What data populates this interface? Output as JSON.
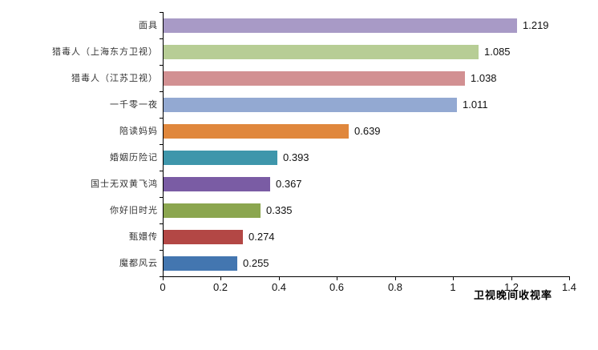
{
  "chart_data": {
    "type": "bar",
    "orientation": "horizontal",
    "title": "",
    "xlabel": "卫视晚间收视率",
    "ylabel": "",
    "xlim": [
      0,
      1.4
    ],
    "x_ticks": [
      "0",
      "0.2",
      "0.4",
      "0.6",
      "0.8",
      "1",
      "1.2",
      "1.4"
    ],
    "grid": false,
    "legend": "none",
    "categories": [
      "面具",
      "猎毒人（上海东方卫视）",
      "猎毒人（江苏卫视）",
      "一千零一夜",
      "陪读妈妈",
      "婚姻历险记",
      "国士无双黄飞鸿",
      "你好旧时光",
      "甄嬛传",
      "魔都风云"
    ],
    "values": [
      1.219,
      1.085,
      1.038,
      1.011,
      0.639,
      0.393,
      0.367,
      0.335,
      0.274,
      0.255
    ],
    "value_labels": [
      "1.219",
      "1.085",
      "1.038",
      "1.011",
      "0.639",
      "0.393",
      "0.367",
      "0.335",
      "0.274",
      "0.255"
    ],
    "bar_colors": [
      "#A89AC6",
      "#B7CD95",
      "#D29092",
      "#93A9D2",
      "#E0873C",
      "#3E96AB",
      "#7A5CA4",
      "#8BA64F",
      "#B34745",
      "#4376B0"
    ],
    "axis_color": "#000000",
    "value_label_color": "#111111",
    "category_label_color": "#333333"
  }
}
